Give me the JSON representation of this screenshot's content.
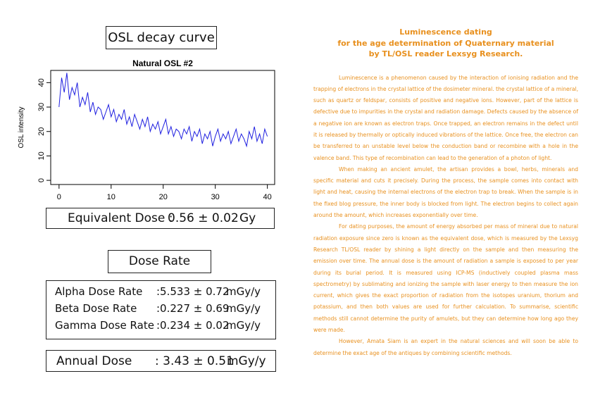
{
  "chart_box_title": "OSL decay curve",
  "chart_data": {
    "type": "line",
    "title": "Natural OSL #2",
    "y_label": "OSL intensity",
    "color": "#1f1fe0",
    "x": [
      0,
      0.5,
      1,
      1.5,
      2,
      2.5,
      3,
      3.5,
      4,
      4.5,
      5,
      5.5,
      6,
      6.5,
      7,
      7.5,
      8,
      8.5,
      9,
      9.5,
      10,
      10.5,
      11,
      11.5,
      12,
      12.5,
      13,
      13.5,
      14,
      14.5,
      15,
      15.5,
      16,
      16.5,
      17,
      17.5,
      18,
      18.5,
      19,
      19.5,
      20,
      20.5,
      21,
      21.5,
      22,
      22.5,
      23,
      23.5,
      24,
      24.5,
      25,
      25.5,
      26,
      26.5,
      27,
      27.5,
      28,
      28.5,
      29,
      29.5,
      30,
      30.5,
      31,
      31.5,
      32,
      32.5,
      33,
      33.5,
      34,
      34.5,
      35,
      35.5,
      36,
      36.5,
      37,
      37.5,
      38,
      38.5,
      39,
      39.5,
      40
    ],
    "values": [
      30,
      42,
      36,
      44,
      33,
      38,
      35,
      40,
      30,
      34,
      31,
      36,
      28,
      32,
      27,
      30,
      29,
      25,
      28,
      31,
      26,
      29,
      24,
      27,
      25,
      29,
      23,
      26,
      22,
      27,
      24,
      21,
      25,
      22,
      26,
      20,
      23,
      21,
      24,
      19,
      22,
      25,
      19,
      22,
      18,
      21,
      20,
      17,
      21,
      19,
      22,
      16,
      20,
      18,
      21,
      15,
      19,
      17,
      20,
      14,
      18,
      21,
      16,
      19,
      17,
      20,
      15,
      18,
      21,
      16,
      19,
      17,
      14,
      20,
      17,
      22,
      16,
      19,
      15,
      21,
      18
    ],
    "xlim": [
      -1.6,
      41.4
    ],
    "xticks": [
      0,
      10,
      20,
      30,
      40
    ],
    "ylim": [
      -1.7,
      45
    ],
    "yticks": [
      0,
      10,
      20,
      30,
      40
    ]
  },
  "equivalent_dose": {
    "label": "Equivalent Dose :",
    "value": "0.56 ± 0.02",
    "unit": "Gy"
  },
  "dose_rate_title": "Dose Rate",
  "dose_rates": [
    {
      "label": "Alpha Dose Rate",
      "value": ":5.533 ± 0.72",
      "unit": "mGy/y"
    },
    {
      "label": "Beta Dose Rate",
      "value": ":0.227 ± 0.69",
      "unit": "mGy/y"
    },
    {
      "label": "Gamma Dose Rate",
      "value": ":0.234 ± 0.02",
      "unit": "mGy/y"
    }
  ],
  "annual_dose": {
    "label": "Annual Dose",
    "value": ": 3.43 ± 0.51",
    "unit": "mGy/y"
  },
  "article": {
    "title": [
      "Luminescence dating",
      "for the age determination of Quaternary material",
      "by TL/OSL reader Lexsyg Research."
    ],
    "paragraphs": [
      "Luminescence is a phenomenon caused by the interaction of ionising radiation and the trapping of electrons in the crystal lattice of the dosimeter mineral. the crystal lattice of a mineral, such as quartz or feldspar, consists of positive and negative ions. However, part of the lattice is defective due to impurities in the crystal and radiation damage. Defects caused by the absence of a negative ion are known as electron traps. Once trapped, an electron remains in the defect until it is released by thermally or optically induced vibrations of the lattice. Once free, the electron can be transferred to an unstable level below the conduction band or recombine with a hole in the valence band. This type of recombination can lead to the generation of a photon of light.",
      "When making an ancient amulet, the artisan provides a bowl, herbs, minerals and specific material and cuts it precisely. During the process, the sample comes into contact with light and heat, causing the internal electrons of the electron trap to break. When the sample is in the fixed blog pressure, the inner body is blocked from light. The electron begins to collect again around the amount, which increases exponentially over time.",
      "For dating purposes, the amount of energy absorbed per mass of mineral due to natural radiation exposure since zero is known as the equivalent dose, which is measured by the Lexsyg Research TL/OSL reader by shining a light directly on the sample and then measuring the emission over time. The annual dose is the amount of radiation a sample is exposed to per year during its burial period. It is measured using ICP-MS (inductively coupled plasma mass spectrometry) by sublimating and ionizing the sample with laser energy to then measure the ion current, which gives the exact proportion of radiation from the isotopes uranium, thorium and potassium, and then both values are used for further calculation. To summarise, scientific methods still cannot determine the purity of amulets, but they can determine how long ago they were made.",
      "However, Amata Siam is an expert in the natural sciences and will soon be able to determine the exact age of the antiques by combining scientific methods."
    ]
  }
}
